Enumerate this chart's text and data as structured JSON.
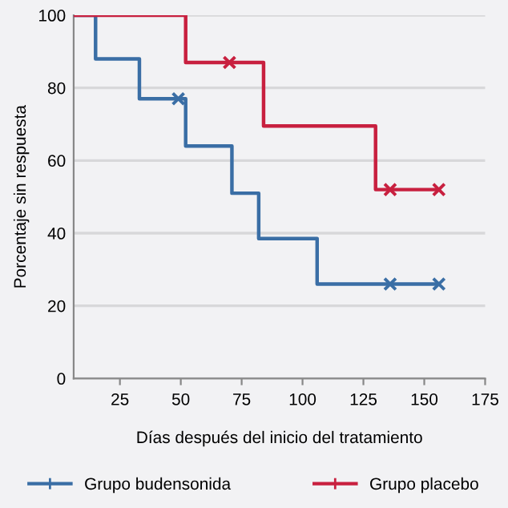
{
  "chart_data": {
    "type": "step",
    "xlabel": "Días después del inicio del tratamiento",
    "ylabel": "Porcentaje sin respuesta",
    "xlim": [
      6,
      175
    ],
    "xticks": [
      25,
      50,
      75,
      100,
      125,
      150,
      175
    ],
    "ylim": [
      0,
      100
    ],
    "yticks": [
      0,
      20,
      40,
      60,
      80,
      100
    ],
    "grid": "y",
    "legend": "bottom",
    "series": [
      {
        "name": "Grupo budensonida",
        "color": "#3a6ea5",
        "x": [
          6,
          15,
          33,
          52,
          71,
          82,
          106,
          156
        ],
        "values": [
          100,
          88,
          77,
          64,
          51,
          38.5,
          26,
          26
        ]
      },
      {
        "name": "Grupo placebo",
        "color": "#c8203f",
        "x": [
          6,
          52,
          84,
          130,
          156
        ],
        "values": [
          100,
          87,
          69.5,
          52,
          52
        ]
      },
      {
        "color": "#3a6ea5",
        "type": "scatter",
        "marker": "cross",
        "x": [
          49,
          136,
          156
        ],
        "values": [
          77,
          26,
          26
        ]
      },
      {
        "color": "#c8203f",
        "type": "scatter",
        "marker": "cross",
        "x": [
          70,
          136,
          156
        ],
        "values": [
          87,
          52,
          52
        ]
      }
    ]
  }
}
